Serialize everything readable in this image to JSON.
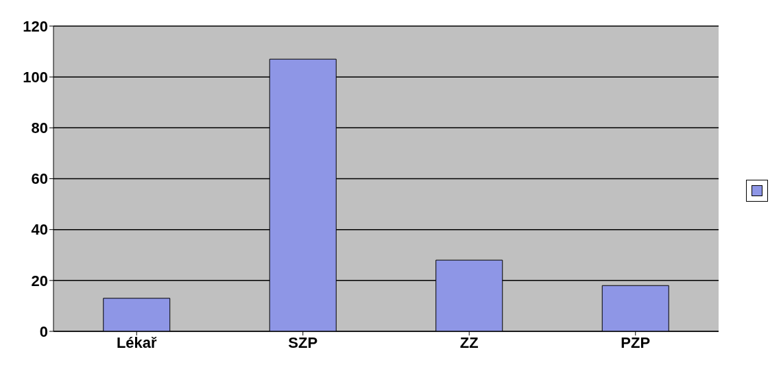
{
  "chart_data": {
    "type": "bar",
    "categories": [
      "Lékař",
      "SZP",
      "ZZ",
      "PZP"
    ],
    "series": [
      {
        "color": "#8e96e6",
        "values": [
          13,
          107,
          28,
          18
        ]
      }
    ],
    "ylim": [
      0,
      120
    ],
    "yticks": [
      0,
      20,
      40,
      60,
      80,
      100,
      120
    ],
    "grid": "y"
  }
}
